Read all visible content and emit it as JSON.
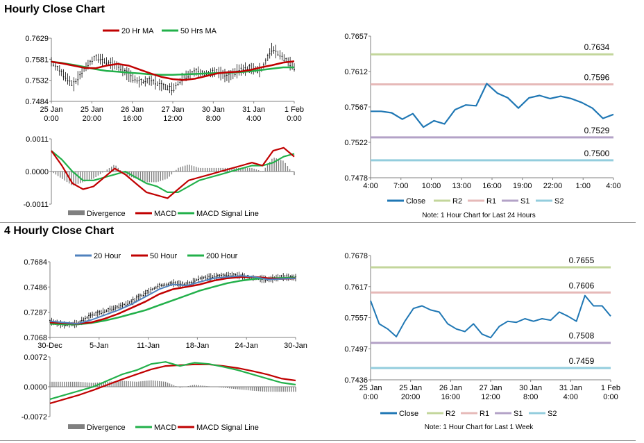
{
  "sections": {
    "hourly_title": "Hourly Close Chart",
    "four_hourly_title": "4 Hourly Close Chart"
  },
  "colors": {
    "ma20_hourly": "#c00000",
    "ma50_hourly": "#22b04a",
    "ma20_4h": "#4f81bd",
    "ma50_4h": "#c00000",
    "ma200_4h": "#22b04a",
    "close": "#1f77b4",
    "r2": "#c3d69b",
    "r1": "#e6b9b8",
    "s1": "#b3a2c7",
    "s2": "#93cddd",
    "divergence": "#808080",
    "macd_hourly": "#c00000",
    "signal_hourly": "#22b04a",
    "macd_4h": "#22b04a",
    "signal_4h": "#c00000"
  },
  "chart_data": [
    {
      "id": "hourly_price",
      "type": "line",
      "x_labels": [
        "25 Jan\n0:00",
        "25 Jan\n20:00",
        "26 Jan\n16:00",
        "27 Jan\n12:00",
        "30 Jan\n8:00",
        "31 Jan\n4:00",
        "1 Feb\n0:00"
      ],
      "y_ticks": [
        "0.7629",
        "0.7581",
        "0.7532",
        "0.7484"
      ],
      "ylim": [
        0.7484,
        0.7629
      ],
      "legend": [
        "20 Hr MA",
        "50 Hrs MA"
      ],
      "series": [
        {
          "name": "20 Hr MA",
          "values": [
            0.7575,
            0.7571,
            0.7566,
            0.7561,
            0.756,
            0.7566,
            0.757,
            0.7566,
            0.7557,
            0.7548,
            0.754,
            0.7535,
            0.7533,
            0.7536,
            0.7542,
            0.7548,
            0.7551,
            0.7552,
            0.7556,
            0.7562,
            0.7567,
            0.7573,
            0.7576
          ]
        },
        {
          "name": "50 Hrs MA",
          "values": [
            0.7575,
            0.7572,
            0.7568,
            0.7563,
            0.7558,
            0.7554,
            0.7552,
            0.755,
            0.7548,
            0.7546,
            0.7545,
            0.7545,
            0.7546,
            0.7547,
            0.7548,
            0.7549,
            0.755,
            0.7551,
            0.7553,
            0.7556,
            0.7559,
            0.7562,
            0.7562
          ]
        }
      ],
      "close": [
        0.7575,
        0.7548,
        0.7522,
        0.756,
        0.7585,
        0.7575,
        0.7565,
        0.7545,
        0.7528,
        0.7532,
        0.752,
        0.7512,
        0.754,
        0.7552,
        0.7548,
        0.7552,
        0.754,
        0.7556,
        0.756,
        0.7555,
        0.7605,
        0.7585,
        0.7562
      ]
    },
    {
      "id": "hourly_macd",
      "type": "line",
      "y_ticks": [
        "0.0011",
        "0.0000",
        "-0.0011"
      ],
      "ylim": [
        -0.0011,
        0.0011
      ],
      "legend": [
        "Divergence",
        "MACD",
        "MACD Signal Line"
      ],
      "series": [
        {
          "name": "MACD",
          "values": [
            0.0007,
            0.0002,
            -0.0004,
            -0.0006,
            -0.0005,
            -0.0002,
            0.0001,
            -0.0001,
            -0.0004,
            -0.0007,
            -0.0008,
            -0.0009,
            -0.0006,
            -0.0003,
            -0.0002,
            -0.0001,
            0.0,
            0.0001,
            0.0002,
            0.0003,
            0.0002,
            0.0007,
            0.0008,
            0.0005
          ]
        },
        {
          "name": "MACD Signal Line",
          "values": [
            0.0007,
            0.0004,
            0.0,
            -0.0003,
            -0.0003,
            -0.0002,
            -0.0001,
            0.0,
            -0.0002,
            -0.0004,
            -0.0005,
            -0.0007,
            -0.0007,
            -0.0005,
            -0.0003,
            -0.0002,
            -0.0001,
            0.0,
            0.0001,
            0.0002,
            0.0002,
            0.0003,
            0.0005,
            0.0006
          ]
        }
      ]
    },
    {
      "id": "hourly_24h",
      "type": "line",
      "note": "Note: 1 Hour Chart for Last 24 Hours",
      "x_labels": [
        "4:00",
        "7:00",
        "10:00",
        "13:00",
        "16:00",
        "19:00",
        "22:00",
        "1:00",
        "4:00"
      ],
      "y_ticks": [
        "0.7657",
        "0.7612",
        "0.7567",
        "0.7522",
        "0.7478"
      ],
      "ylim": [
        0.7478,
        0.7657
      ],
      "legend": [
        "Close",
        "R2",
        "R1",
        "S1",
        "S2"
      ],
      "levels": {
        "R2": 0.7634,
        "R1": 0.7596,
        "S1": 0.7529,
        "S2": 0.75
      },
      "level_labels": {
        "R2": "0.7634",
        "R1": "0.7596",
        "S1": "0.7529",
        "S2": "0.7500"
      },
      "close": [
        0.7562,
        0.7562,
        0.756,
        0.7552,
        0.7559,
        0.7542,
        0.755,
        0.7546,
        0.7564,
        0.757,
        0.7569,
        0.7597,
        0.7585,
        0.7579,
        0.7566,
        0.7579,
        0.7582,
        0.7578,
        0.7581,
        0.7578,
        0.7573,
        0.7566,
        0.7553,
        0.7558
      ]
    },
    {
      "id": "four_hourly_price",
      "type": "line",
      "x_labels": [
        "30-Dec",
        "5-Jan",
        "11-Jan",
        "18-Jan",
        "24-Jan",
        "30-Jan"
      ],
      "y_ticks": [
        "0.7684",
        "0.7486",
        "0.7287",
        "0.7068"
      ],
      "ylim": [
        0.7068,
        0.7684
      ],
      "legend": [
        "20 Hour",
        "50 Hour",
        "200 Hour"
      ],
      "series": [
        {
          "name": "20 Hour",
          "values": [
            0.72,
            0.719,
            0.718,
            0.721,
            0.725,
            0.729,
            0.734,
            0.74,
            0.746,
            0.75,
            0.749,
            0.752,
            0.755,
            0.756,
            0.757,
            0.756,
            0.754,
            0.7545,
            0.755
          ]
        },
        {
          "name": "50 Hour",
          "values": [
            0.719,
            0.7185,
            0.718,
            0.719,
            0.722,
            0.726,
            0.731,
            0.736,
            0.742,
            0.746,
            0.748,
            0.75,
            0.753,
            0.755,
            0.756,
            0.756,
            0.755,
            0.7545,
            0.755
          ]
        },
        {
          "name": "200 Hour",
          "values": [
            0.718,
            0.7175,
            0.7175,
            0.7185,
            0.7205,
            0.723,
            0.726,
            0.729,
            0.733,
            0.737,
            0.741,
            0.745,
            0.748,
            0.751,
            0.753,
            0.7545,
            0.755,
            0.7552,
            0.7555
          ]
        }
      ],
      "close": [
        0.72,
        0.717,
        0.718,
        0.725,
        0.728,
        0.732,
        0.736,
        0.743,
        0.749,
        0.751,
        0.75,
        0.755,
        0.756,
        0.758,
        0.757,
        0.755,
        0.754,
        0.756,
        0.7555
      ]
    },
    {
      "id": "four_hourly_macd",
      "type": "line",
      "y_ticks": [
        "0.0072",
        "0.0000",
        "-0.0072"
      ],
      "ylim": [
        -0.0072,
        0.0072
      ],
      "legend": [
        "Divergence",
        "MACD",
        "MACD Signal Line"
      ],
      "series": [
        {
          "name": "MACD",
          "values": [
            -0.003,
            -0.002,
            -0.001,
            0.0,
            0.0015,
            0.003,
            0.004,
            0.0055,
            0.006,
            0.005,
            0.0058,
            0.0055,
            0.0048,
            0.004,
            0.003,
            0.002,
            0.001,
            0.0005
          ]
        },
        {
          "name": "MACD Signal Line",
          "values": [
            -0.004,
            -0.003,
            -0.002,
            -0.0008,
            0.0005,
            0.0018,
            0.003,
            0.0042,
            0.005,
            0.0052,
            0.0054,
            0.0054,
            0.005,
            0.0045,
            0.0038,
            0.003,
            0.002,
            0.0015
          ]
        }
      ]
    },
    {
      "id": "four_hourly_week",
      "type": "line",
      "note": "Note: 1 Hour Chart for Last 1 Week",
      "x_labels": [
        "25 Jan\n0:00",
        "25 Jan\n20:00",
        "26 Jan\n16:00",
        "27 Jan\n12:00",
        "30 Jan\n8:00",
        "31 Jan\n4:00",
        "1 Feb\n0:00"
      ],
      "y_ticks": [
        "0.7678",
        "0.7617",
        "0.7557",
        "0.7497",
        "0.7436"
      ],
      "ylim": [
        0.7436,
        0.7678
      ],
      "legend": [
        "Close",
        "R2",
        "R1",
        "S1",
        "S2"
      ],
      "levels": {
        "R2": 0.7655,
        "R1": 0.7606,
        "S1": 0.7508,
        "S2": 0.7459
      },
      "level_labels": {
        "R2": "0.7655",
        "R1": "0.7606",
        "S1": "0.7508",
        "S2": "0.7459"
      },
      "close": [
        0.759,
        0.7545,
        0.7535,
        0.752,
        0.755,
        0.7575,
        0.758,
        0.7572,
        0.7568,
        0.7545,
        0.7535,
        0.753,
        0.7545,
        0.7525,
        0.7518,
        0.754,
        0.755,
        0.7548,
        0.7555,
        0.755,
        0.7555,
        0.7552,
        0.7568,
        0.756,
        0.755,
        0.76,
        0.758,
        0.758,
        0.756
      ]
    }
  ]
}
